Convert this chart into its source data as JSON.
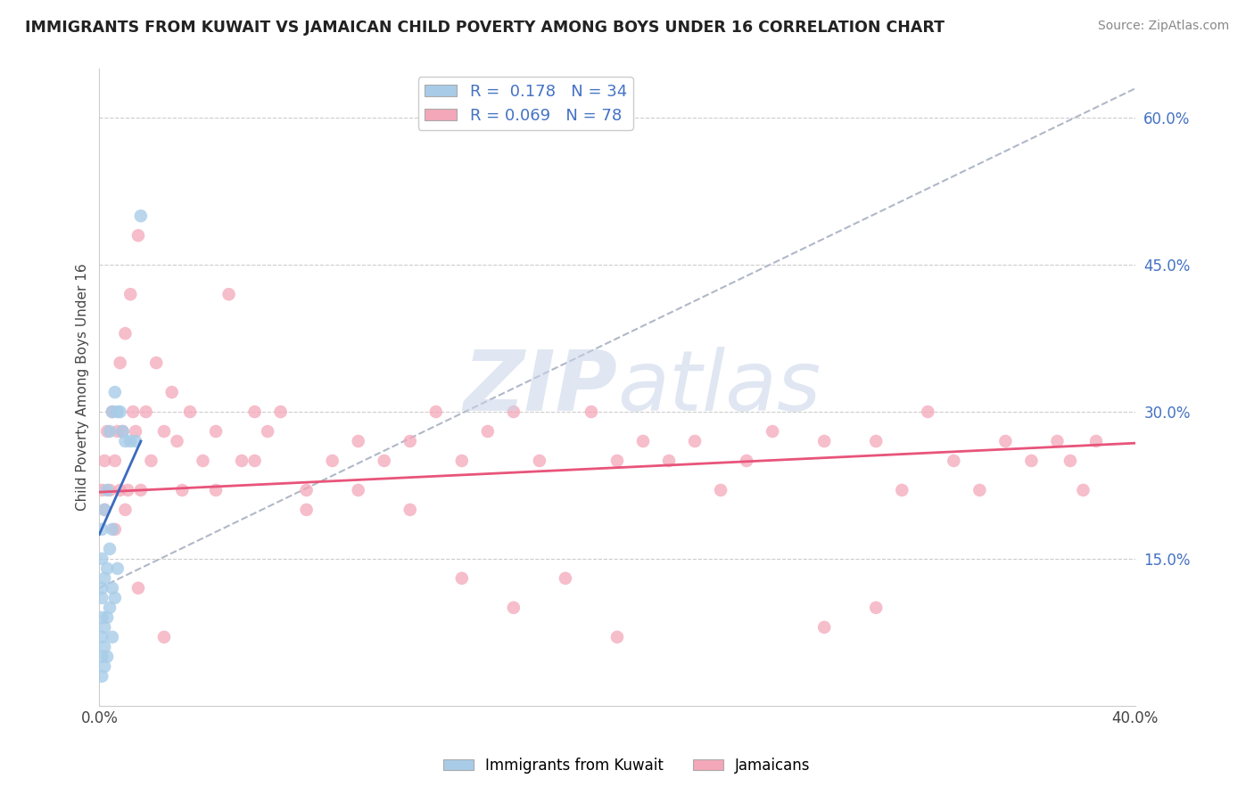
{
  "title": "IMMIGRANTS FROM KUWAIT VS JAMAICAN CHILD POVERTY AMONG BOYS UNDER 16 CORRELATION CHART",
  "source": "Source: ZipAtlas.com",
  "ylabel": "Child Poverty Among Boys Under 16",
  "xlim": [
    0.0,
    0.4
  ],
  "ylim": [
    0.0,
    0.65
  ],
  "x_tick_labels": [
    "0.0%",
    "40.0%"
  ],
  "x_tick_vals": [
    0.0,
    0.4
  ],
  "y_tick_labels_right": [
    "15.0%",
    "30.0%",
    "45.0%",
    "60.0%"
  ],
  "y_tick_vals_right": [
    0.15,
    0.3,
    0.45,
    0.6
  ],
  "blue_scatter_color": "#a8cce8",
  "pink_scatter_color": "#f4a7b9",
  "blue_line_color": "#3a6bbf",
  "pink_line_color": "#e8547a",
  "gray_dash_color": "#b0b8c8",
  "right_tick_color": "#4472c4",
  "kuwait_x": [
    0.001,
    0.001,
    0.001,
    0.001,
    0.001,
    0.001,
    0.001,
    0.001,
    0.002,
    0.002,
    0.002,
    0.002,
    0.002,
    0.003,
    0.003,
    0.003,
    0.003,
    0.004,
    0.004,
    0.004,
    0.005,
    0.005,
    0.005,
    0.005,
    0.006,
    0.006,
    0.007,
    0.007,
    0.008,
    0.009,
    0.01,
    0.012,
    0.014,
    0.016
  ],
  "kuwait_y": [
    0.03,
    0.05,
    0.07,
    0.09,
    0.11,
    0.12,
    0.15,
    0.18,
    0.04,
    0.06,
    0.08,
    0.13,
    0.2,
    0.05,
    0.09,
    0.14,
    0.22,
    0.1,
    0.16,
    0.28,
    0.07,
    0.12,
    0.18,
    0.3,
    0.11,
    0.32,
    0.14,
    0.3,
    0.3,
    0.28,
    0.27,
    0.27,
    0.27,
    0.5
  ],
  "jamaican_x": [
    0.001,
    0.002,
    0.002,
    0.003,
    0.004,
    0.005,
    0.006,
    0.006,
    0.007,
    0.008,
    0.008,
    0.009,
    0.01,
    0.011,
    0.012,
    0.013,
    0.014,
    0.015,
    0.016,
    0.018,
    0.02,
    0.022,
    0.025,
    0.028,
    0.03,
    0.032,
    0.035,
    0.04,
    0.045,
    0.05,
    0.055,
    0.06,
    0.065,
    0.07,
    0.08,
    0.09,
    0.1,
    0.11,
    0.12,
    0.13,
    0.14,
    0.15,
    0.16,
    0.17,
    0.19,
    0.2,
    0.21,
    0.22,
    0.23,
    0.24,
    0.25,
    0.26,
    0.28,
    0.3,
    0.31,
    0.32,
    0.33,
    0.34,
    0.35,
    0.36,
    0.37,
    0.375,
    0.38,
    0.385,
    0.3,
    0.28,
    0.2,
    0.18,
    0.16,
    0.14,
    0.12,
    0.1,
    0.08,
    0.06,
    0.045,
    0.025,
    0.015,
    0.01
  ],
  "jamaican_y": [
    0.22,
    0.25,
    0.2,
    0.28,
    0.22,
    0.3,
    0.25,
    0.18,
    0.28,
    0.22,
    0.35,
    0.28,
    0.38,
    0.22,
    0.42,
    0.3,
    0.28,
    0.48,
    0.22,
    0.3,
    0.25,
    0.35,
    0.28,
    0.32,
    0.27,
    0.22,
    0.3,
    0.25,
    0.28,
    0.42,
    0.25,
    0.3,
    0.28,
    0.3,
    0.2,
    0.25,
    0.27,
    0.25,
    0.27,
    0.3,
    0.25,
    0.28,
    0.3,
    0.25,
    0.3,
    0.25,
    0.27,
    0.25,
    0.27,
    0.22,
    0.25,
    0.28,
    0.27,
    0.27,
    0.22,
    0.3,
    0.25,
    0.22,
    0.27,
    0.25,
    0.27,
    0.25,
    0.22,
    0.27,
    0.1,
    0.08,
    0.07,
    0.13,
    0.1,
    0.13,
    0.2,
    0.22,
    0.22,
    0.25,
    0.22,
    0.07,
    0.12,
    0.2
  ],
  "blue_line_x0": 0.0,
  "blue_line_y0": 0.175,
  "blue_line_x1": 0.016,
  "blue_line_y1": 0.27,
  "pink_line_x0": 0.0,
  "pink_line_y0": 0.218,
  "pink_line_x1": 0.4,
  "pink_line_y1": 0.268,
  "gray_line_x0": 0.0,
  "gray_line_y0": 0.12,
  "gray_line_x1": 0.4,
  "gray_line_y1": 0.63
}
